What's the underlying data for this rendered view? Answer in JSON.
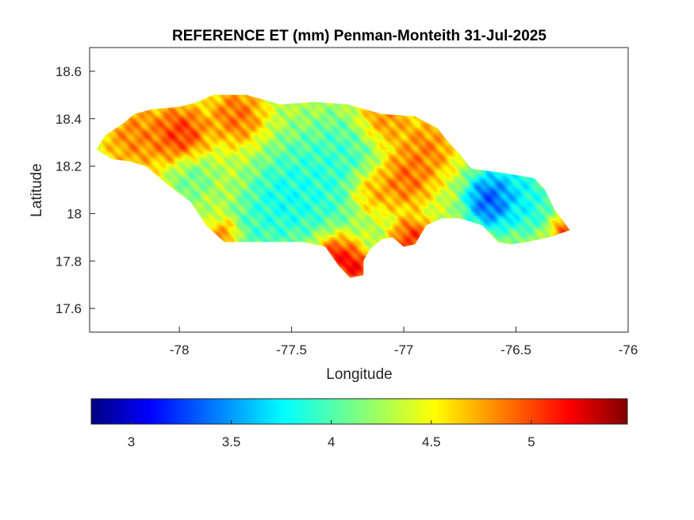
{
  "chart_data": {
    "type": "heatmap",
    "title": "REFERENCE ET (mm) Penman-Monteith 31-Jul-2025",
    "xlabel": "Longitude",
    "ylabel": "Latitude",
    "xlim": [
      -78.4,
      -76
    ],
    "ylim": [
      17.5,
      18.7
    ],
    "xticks": [
      -78,
      -77.5,
      -77,
      -76.5,
      -76
    ],
    "yticks": [
      17.6,
      17.8,
      18,
      18.2,
      18.4,
      18.6
    ],
    "colormap": "jet",
    "colorbar": {
      "orientation": "horizontal",
      "location": "below",
      "clim": [
        2.8,
        5.48
      ],
      "ticks": [
        3,
        3.5,
        4,
        4.5,
        5
      ]
    },
    "grid": false,
    "outline": [
      [
        -78.37,
        18.27
      ],
      [
        -78.33,
        18.33
      ],
      [
        -78.25,
        18.38
      ],
      [
        -78.2,
        18.42
      ],
      [
        -78.12,
        18.44
      ],
      [
        -78.0,
        18.45
      ],
      [
        -77.92,
        18.47
      ],
      [
        -77.85,
        18.5
      ],
      [
        -77.7,
        18.5
      ],
      [
        -77.55,
        18.46
      ],
      [
        -77.4,
        18.47
      ],
      [
        -77.25,
        18.46
      ],
      [
        -77.1,
        18.42
      ],
      [
        -76.95,
        18.41
      ],
      [
        -76.85,
        18.36
      ],
      [
        -76.8,
        18.3
      ],
      [
        -76.75,
        18.25
      ],
      [
        -76.7,
        18.19
      ],
      [
        -76.55,
        18.17
      ],
      [
        -76.42,
        18.15
      ],
      [
        -76.37,
        18.1
      ],
      [
        -76.33,
        18.02
      ],
      [
        -76.26,
        17.93
      ],
      [
        -76.35,
        17.9
      ],
      [
        -76.45,
        17.88
      ],
      [
        -76.52,
        17.87
      ],
      [
        -76.58,
        17.88
      ],
      [
        -76.65,
        17.95
      ],
      [
        -76.75,
        17.98
      ],
      [
        -76.83,
        17.98
      ],
      [
        -76.9,
        17.95
      ],
      [
        -76.95,
        17.87
      ],
      [
        -77.0,
        17.86
      ],
      [
        -77.05,
        17.9
      ],
      [
        -77.1,
        17.89
      ],
      [
        -77.15,
        17.85
      ],
      [
        -77.18,
        17.8
      ],
      [
        -77.18,
        17.74
      ],
      [
        -77.24,
        17.73
      ],
      [
        -77.29,
        17.78
      ],
      [
        -77.35,
        17.86
      ],
      [
        -77.45,
        17.88
      ],
      [
        -77.65,
        17.88
      ],
      [
        -77.8,
        17.88
      ],
      [
        -77.88,
        17.95
      ],
      [
        -77.95,
        18.05
      ],
      [
        -78.05,
        18.12
      ],
      [
        -78.15,
        18.2
      ],
      [
        -78.22,
        18.22
      ],
      [
        -78.3,
        18.23
      ]
    ],
    "field": {
      "background": 4.3,
      "features": [
        {
          "lon": -77.4,
          "lat": 18.13,
          "value": 3.75,
          "radius": 0.18
        },
        {
          "lon": -77.55,
          "lat": 18.05,
          "value": 3.7,
          "radius": 0.12
        },
        {
          "lon": -77.25,
          "lat": 18.28,
          "value": 3.9,
          "radius": 0.12
        },
        {
          "lon": -77.65,
          "lat": 17.95,
          "value": 3.9,
          "radius": 0.1
        },
        {
          "lon": -77.95,
          "lat": 18.16,
          "value": 4.0,
          "radius": 0.08
        },
        {
          "lon": -76.62,
          "lat": 18.06,
          "value": 2.9,
          "radius": 0.08
        },
        {
          "lon": -76.55,
          "lat": 18.08,
          "value": 3.5,
          "radius": 0.12
        },
        {
          "lon": -76.45,
          "lat": 18.03,
          "value": 3.8,
          "radius": 0.08
        },
        {
          "lon": -78.0,
          "lat": 18.34,
          "value": 5.3,
          "radius": 0.1
        },
        {
          "lon": -78.2,
          "lat": 18.33,
          "value": 5.0,
          "radius": 0.12
        },
        {
          "lon": -77.75,
          "lat": 18.42,
          "value": 5.1,
          "radius": 0.1
        },
        {
          "lon": -77.3,
          "lat": 17.82,
          "value": 5.45,
          "radius": 0.08
        },
        {
          "lon": -77.22,
          "lat": 17.78,
          "value": 5.4,
          "radius": 0.05
        },
        {
          "lon": -76.97,
          "lat": 17.9,
          "value": 5.3,
          "radius": 0.07
        },
        {
          "lon": -77.0,
          "lat": 18.15,
          "value": 5.1,
          "radius": 0.1
        },
        {
          "lon": -77.15,
          "lat": 18.1,
          "value": 4.9,
          "radius": 0.08
        },
        {
          "lon": -76.9,
          "lat": 18.28,
          "value": 5.0,
          "radius": 0.1
        },
        {
          "lon": -77.1,
          "lat": 18.4,
          "value": 5.0,
          "radius": 0.1
        },
        {
          "lon": -76.28,
          "lat": 17.93,
          "value": 5.2,
          "radius": 0.05
        },
        {
          "lon": -77.8,
          "lat": 17.92,
          "value": 5.0,
          "radius": 0.05
        }
      ]
    }
  }
}
